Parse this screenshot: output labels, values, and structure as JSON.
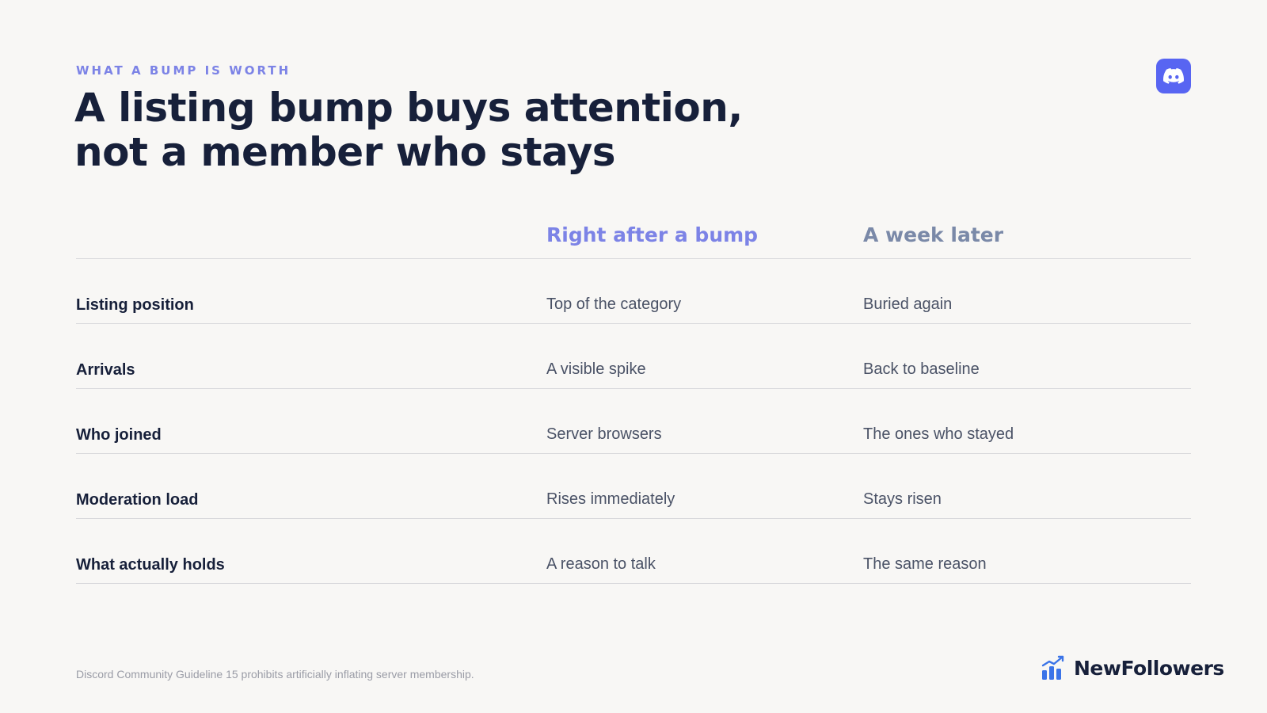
{
  "header": {
    "eyebrow": "WHAT A BUMP IS WORTH",
    "title_line_1": "A listing bump buys attention,",
    "title_line_2": "not a member who stays",
    "badge_icon": "discord-icon",
    "badge_color": "#5865f2"
  },
  "table": {
    "columns": [
      "Right after a bump",
      "A week later"
    ],
    "rows": [
      {
        "label": "Listing position",
        "a": "Top of the category",
        "b": "Buried again"
      },
      {
        "label": "Arrivals",
        "a": "A visible spike",
        "b": "Back to baseline"
      },
      {
        "label": "Who joined",
        "a": "Server browsers",
        "b": "The ones who stayed"
      },
      {
        "label": "Moderation load",
        "a": "Rises immediately",
        "b": "Stays risen"
      },
      {
        "label": "What actually holds",
        "a": "A reason to talk",
        "b": "The same reason"
      }
    ]
  },
  "footer": {
    "note": "Discord Community Guideline 15 prohibits artificially inflating server membership.",
    "brand_name": "NewFollowers",
    "brand_icon": "growth-chart-icon",
    "accent_color": "#7c83e6"
  }
}
